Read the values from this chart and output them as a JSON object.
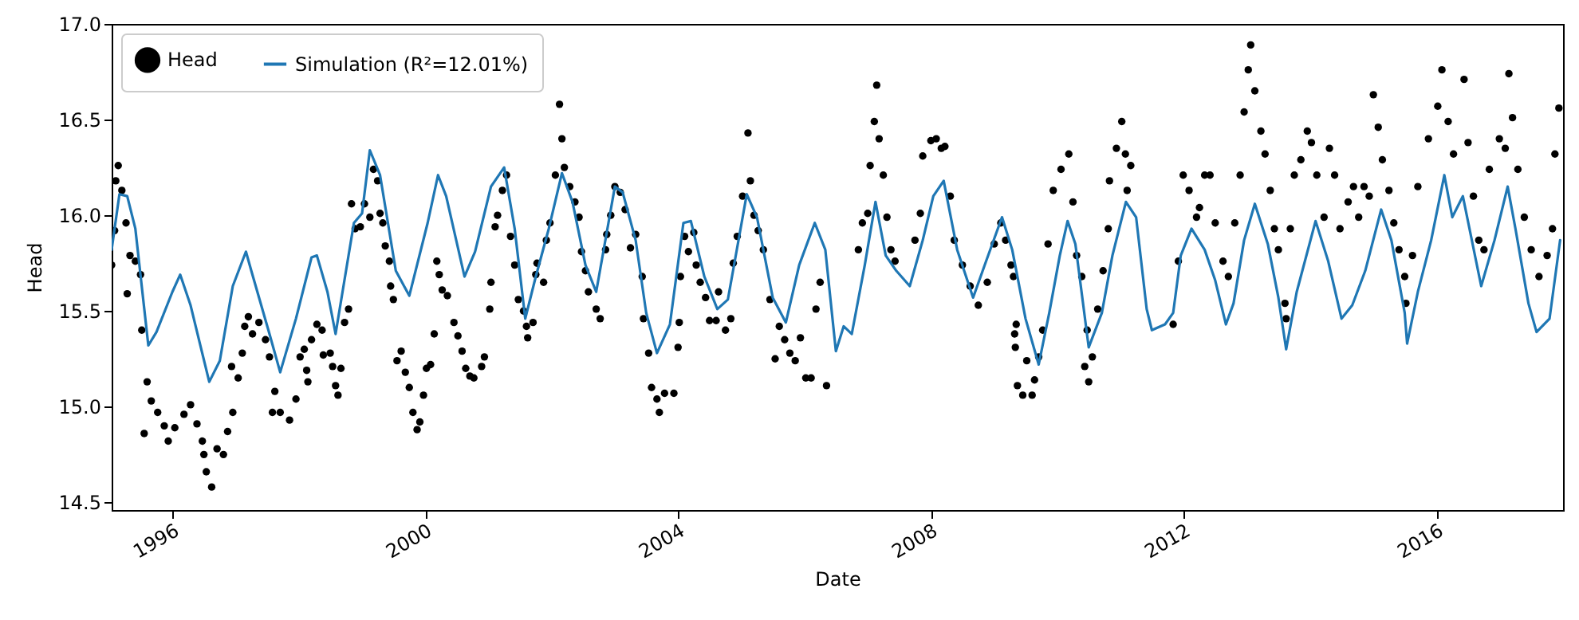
{
  "chart_data": {
    "type": "scatter",
    "xlabel": "Date",
    "ylabel": "Head",
    "legend": "top left",
    "grid": false,
    "xlim": [
      "1995-01-15",
      "2018-01-01"
    ],
    "xticks": [
      "1996",
      "2000",
      "2004",
      "2008",
      "2012",
      "2016"
    ],
    "ylim": [
      14.46,
      17.0
    ],
    "yticks": [
      {
        "value": 14.5,
        "label": "14.5"
      },
      {
        "value": 15,
        "label": "15.0"
      },
      {
        "value": 15.5,
        "label": "15.5"
      },
      {
        "value": 16,
        "label": "16.0"
      },
      {
        "value": 16.5,
        "label": "16.5"
      },
      {
        "value": 17,
        "label": "17.0"
      }
    ],
    "series": [
      {
        "name": "Head",
        "marker": "circle",
        "color": "#000000",
        "x": [
          "1995-01-15",
          "1995-02-01",
          "1995-02-08",
          "1995-02-22",
          "1995-03-15",
          "1995-04-08",
          "1995-04-15",
          "1995-05-01",
          "1995-06-01",
          "1995-07-01",
          "1995-07-08",
          "1995-07-22",
          "1995-08-08",
          "1995-09-01",
          "1995-10-08",
          "1995-11-15",
          "1995-12-08",
          "1996-01-15",
          "1996-03-08",
          "1996-04-15",
          "1996-05-22",
          "1996-06-22",
          "1996-07-01",
          "1996-07-15",
          "1996-08-15",
          "1996-09-15",
          "1996-10-22",
          "1996-11-15",
          "1996-12-08",
          "1996-12-15",
          "1997-01-15",
          "1997-02-08",
          "1997-02-22",
          "1997-03-15",
          "1997-04-08",
          "1997-05-15",
          "1997-06-22",
          "1997-07-15",
          "1997-08-01",
          "1997-08-15",
          "1997-09-15",
          "1997-11-08",
          "1997-12-15",
          "1998-01-08",
          "1998-02-01",
          "1998-02-15",
          "1998-02-22",
          "1998-03-15",
          "1998-04-15",
          "1998-05-15",
          "1998-05-22",
          "1998-07-01",
          "1998-07-15",
          "1998-08-01",
          "1998-08-15",
          "1998-09-01",
          "1998-09-22",
          "1998-10-15",
          "1998-11-01",
          "1998-11-22",
          "1998-12-22",
          "1999-01-15",
          "1999-02-15",
          "1999-03-08",
          "1999-04-01",
          "1999-04-15",
          "1999-05-01",
          "1999-05-15",
          "1999-06-08",
          "1999-06-15",
          "1999-07-01",
          "1999-07-22",
          "1999-08-15",
          "1999-09-08",
          "1999-10-01",
          "1999-10-22",
          "1999-11-15",
          "1999-12-01",
          "1999-12-22",
          "2000-01-08",
          "2000-02-01",
          "2000-02-22",
          "2000-03-08",
          "2000-03-22",
          "2000-04-08",
          "2000-05-08",
          "2000-06-15",
          "2000-07-08",
          "2000-08-01",
          "2000-08-22",
          "2000-09-15",
          "2000-10-08",
          "2000-11-22",
          "2000-12-08",
          "2001-01-08",
          "2001-01-15",
          "2001-02-08",
          "2001-02-22",
          "2001-03-22",
          "2001-04-15",
          "2001-05-08",
          "2001-06-01",
          "2001-06-22",
          "2001-07-22",
          "2001-08-08",
          "2001-08-15",
          "2001-09-15",
          "2001-10-01",
          "2001-10-08",
          "2001-11-15",
          "2001-12-01",
          "2001-12-22",
          "2002-01-22",
          "2002-02-15",
          "2002-03-01",
          "2002-03-15",
          "2002-04-15",
          "2002-05-15",
          "2002-06-08",
          "2002-06-22",
          "2002-07-15",
          "2002-08-01",
          "2002-09-15",
          "2002-10-08",
          "2002-11-08",
          "2002-11-15",
          "2002-12-08",
          "2003-01-01",
          "2003-02-01",
          "2003-03-01",
          "2003-04-01",
          "2003-05-01",
          "2003-06-08",
          "2003-06-15",
          "2003-07-15",
          "2003-08-01",
          "2003-09-01",
          "2003-09-15",
          "2003-10-15",
          "2003-12-08",
          "2004-01-01",
          "2004-01-08",
          "2004-01-15",
          "2004-02-08",
          "2004-03-01",
          "2004-04-01",
          "2004-04-15",
          "2004-05-08",
          "2004-06-08",
          "2004-07-01",
          "2004-08-08",
          "2004-08-22",
          "2004-10-01",
          "2004-11-01",
          "2004-11-15",
          "2004-12-08",
          "2005-01-08",
          "2005-02-08",
          "2005-02-22",
          "2005-03-15",
          "2005-04-08",
          "2005-05-08",
          "2005-06-15",
          "2005-07-15",
          "2005-08-08",
          "2005-09-08",
          "2005-10-08",
          "2005-11-08",
          "2005-12-08",
          "2006-01-08",
          "2006-02-08",
          "2006-03-08",
          "2006-04-01",
          "2006-05-08",
          "2006-11-08",
          "2006-12-01",
          "2007-01-01",
          "2007-01-15",
          "2007-02-08",
          "2007-02-22",
          "2007-03-08",
          "2007-04-01",
          "2007-04-22",
          "2007-05-15",
          "2007-06-08",
          "2007-10-01",
          "2007-11-01",
          "2007-11-15",
          "2008-01-01",
          "2008-02-01",
          "2008-03-01",
          "2008-03-22",
          "2008-04-22",
          "2008-05-15",
          "2008-07-01",
          "2008-08-15",
          "2008-10-01",
          "2008-11-22",
          "2009-01-01",
          "2009-02-08",
          "2009-03-08",
          "2009-04-08",
          "2009-04-22",
          "2009-04-29",
          "2009-05-03",
          "2009-05-08",
          "2009-05-15",
          "2009-06-15",
          "2009-07-08",
          "2009-08-08",
          "2009-08-22",
          "2009-09-15",
          "2009-10-08",
          "2009-11-08",
          "2009-12-08",
          "2010-01-22",
          "2010-03-08",
          "2010-04-01",
          "2010-04-22",
          "2010-05-22",
          "2010-06-08",
          "2010-06-22",
          "2010-07-01",
          "2010-07-22",
          "2010-08-22",
          "2010-09-22",
          "2010-10-22",
          "2010-10-29",
          "2010-12-08",
          "2011-01-08",
          "2011-01-29",
          "2011-02-08",
          "2011-03-01",
          "2011-11-01",
          "2011-12-01",
          "2011-12-29",
          "2012-02-01",
          "2012-03-15",
          "2012-04-01",
          "2012-05-01",
          "2012-06-01",
          "2012-07-01",
          "2012-08-15",
          "2012-09-15",
          "2012-10-22",
          "2012-11-22",
          "2012-12-15",
          "2013-01-08",
          "2013-01-22",
          "2013-02-15",
          "2013-03-22",
          "2013-04-15",
          "2013-05-15",
          "2013-06-08",
          "2013-07-01",
          "2013-08-08",
          "2013-08-15",
          "2013-09-08",
          "2013-10-01",
          "2013-11-08",
          "2013-12-15",
          "2014-01-08",
          "2014-02-08",
          "2014-03-22",
          "2014-04-22",
          "2014-05-22",
          "2014-06-22",
          "2014-08-08",
          "2014-09-08",
          "2014-10-08",
          "2014-11-08",
          "2014-12-08",
          "2015-01-01",
          "2015-01-29",
          "2015-02-22",
          "2015-04-01",
          "2015-04-29",
          "2015-05-29",
          "2015-07-01",
          "2015-07-08",
          "2015-08-15",
          "2015-09-15",
          "2015-11-15",
          "2016-01-08",
          "2016-02-01",
          "2016-03-08",
          "2016-04-08",
          "2016-06-08",
          "2016-07-01",
          "2016-08-01",
          "2016-09-01",
          "2016-10-01",
          "2016-11-01",
          "2016-12-29",
          "2017-02-01",
          "2017-02-22",
          "2017-03-15",
          "2017-04-15",
          "2017-05-22",
          "2017-07-01",
          "2017-08-15",
          "2017-10-01",
          "2017-11-01",
          "2017-11-15",
          "2017-12-08"
        ],
        "values": [
          15.74,
          15.92,
          16.18,
          16.26,
          16.13,
          15.96,
          15.59,
          15.79,
          15.76,
          15.69,
          15.4,
          14.86,
          15.13,
          15.03,
          14.97,
          14.9,
          14.82,
          14.89,
          14.96,
          15.01,
          14.91,
          14.82,
          14.75,
          14.66,
          14.58,
          14.78,
          14.75,
          14.87,
          15.21,
          14.97,
          15.15,
          15.28,
          15.42,
          15.47,
          15.38,
          15.44,
          15.35,
          15.26,
          14.97,
          15.08,
          14.97,
          14.93,
          15.04,
          15.26,
          15.3,
          15.19,
          15.13,
          15.35,
          15.43,
          15.4,
          15.27,
          15.28,
          15.21,
          15.11,
          15.06,
          15.2,
          15.44,
          15.51,
          16.06,
          15.93,
          15.94,
          16.06,
          15.99,
          16.24,
          16.18,
          16.01,
          15.96,
          15.84,
          15.76,
          15.63,
          15.56,
          15.24,
          15.29,
          15.18,
          15.1,
          14.97,
          14.88,
          14.92,
          15.06,
          15.2,
          15.22,
          15.38,
          15.76,
          15.69,
          15.61,
          15.58,
          15.44,
          15.37,
          15.29,
          15.2,
          15.16,
          15.15,
          15.21,
          15.26,
          15.51,
          15.65,
          15.94,
          16.0,
          16.13,
          16.21,
          15.89,
          15.74,
          15.56,
          15.5,
          15.42,
          15.36,
          15.44,
          15.69,
          15.75,
          15.65,
          15.87,
          15.96,
          16.21,
          16.58,
          16.4,
          16.25,
          16.15,
          16.07,
          15.99,
          15.81,
          15.71,
          15.6,
          15.51,
          15.46,
          15.82,
          15.9,
          16.0,
          16.15,
          16.12,
          16.03,
          15.83,
          15.9,
          15.68,
          15.46,
          15.28,
          15.1,
          15.04,
          14.97,
          15.07,
          15.07,
          15.31,
          15.44,
          15.68,
          15.89,
          15.81,
          15.91,
          15.74,
          15.65,
          15.57,
          15.45,
          15.45,
          15.6,
          15.4,
          15.46,
          15.75,
          15.89,
          16.1,
          16.43,
          16.18,
          16.0,
          15.92,
          15.82,
          15.56,
          15.25,
          15.42,
          15.35,
          15.28,
          15.24,
          15.36,
          15.15,
          15.15,
          15.51,
          15.65,
          15.11,
          15.82,
          15.96,
          16.01,
          16.26,
          16.49,
          16.68,
          16.4,
          16.21,
          15.99,
          15.82,
          15.76,
          15.87,
          16.01,
          16.31,
          16.39,
          16.4,
          16.35,
          16.36,
          16.1,
          15.87,
          15.74,
          15.63,
          15.53,
          15.65,
          15.85,
          15.96,
          15.87,
          15.74,
          15.68,
          15.38,
          15.31,
          15.43,
          15.11,
          15.06,
          15.24,
          15.06,
          15.14,
          15.26,
          15.4,
          15.85,
          16.13,
          16.24,
          16.32,
          16.07,
          15.79,
          15.68,
          15.21,
          15.4,
          15.13,
          15.26,
          15.51,
          15.71,
          15.93,
          16.18,
          16.35,
          16.49,
          16.32,
          16.13,
          16.26,
          15.43,
          15.76,
          16.21,
          16.13,
          15.99,
          16.04,
          16.21,
          16.21,
          15.96,
          15.76,
          15.68,
          15.96,
          16.21,
          16.54,
          16.76,
          16.89,
          16.65,
          16.44,
          16.32,
          16.13,
          15.93,
          15.82,
          15.54,
          15.46,
          15.93,
          16.21,
          16.29,
          16.44,
          16.38,
          16.21,
          15.99,
          16.35,
          16.21,
          15.93,
          16.07,
          16.15,
          15.99,
          16.15,
          16.1,
          16.63,
          16.46,
          16.29,
          16.13,
          15.96,
          15.82,
          15.68,
          15.54,
          15.79,
          16.15,
          16.4,
          16.57,
          16.76,
          16.49,
          16.32,
          16.71,
          16.38,
          16.1,
          15.87,
          15.82,
          16.24,
          16.4,
          16.35,
          16.74,
          16.51,
          16.24,
          15.99,
          15.82,
          15.68,
          15.79,
          15.93,
          16.32,
          16.56
        ]
      },
      {
        "name": "Simulation (R²=12.01%)",
        "type": "line",
        "color": "#1f77b4",
        "x": [
          "1995-01-15",
          "1995-03-01",
          "1995-04-15",
          "1995-06-01",
          "1995-08-15",
          "1995-10-01",
          "1996-01-01",
          "1996-02-15",
          "1996-04-15",
          "1996-08-01",
          "1996-10-01",
          "1996-12-15",
          "1997-03-01",
          "1997-04-01",
          "1997-07-15",
          "1997-09-15",
          "1997-12-15",
          "1998-03-15",
          "1998-04-15",
          "1998-06-15",
          "1998-08-01",
          "1998-11-15",
          "1999-01-01",
          "1999-02-15",
          "1999-04-15",
          "1999-07-15",
          "1999-10-01",
          "2000-01-15",
          "2000-03-15",
          "2000-05-01",
          "2000-08-15",
          "2000-10-15",
          "2001-01-15",
          "2001-04-01",
          "2001-06-01",
          "2001-08-01",
          "2001-10-01",
          "2001-12-15",
          "2002-03-01",
          "2002-05-01",
          "2002-07-15",
          "2002-09-15",
          "2003-01-01",
          "2003-02-15",
          "2003-05-01",
          "2003-07-01",
          "2003-09-01",
          "2003-11-15",
          "2004-02-01",
          "2004-03-15",
          "2004-06-01",
          "2004-08-15",
          "2004-10-15",
          "2005-02-01",
          "2005-04-01",
          "2005-07-01",
          "2005-09-15",
          "2005-12-01",
          "2006-03-01",
          "2006-05-01",
          "2006-07-01",
          "2006-08-15",
          "2006-10-01",
          "2006-12-15",
          "2007-02-15",
          "2007-04-15",
          "2007-06-15",
          "2007-09-01",
          "2007-11-15",
          "2008-01-15",
          "2008-03-15",
          "2008-06-01",
          "2008-09-01",
          "2008-11-15",
          "2009-02-15",
          "2009-04-15",
          "2009-07-01",
          "2009-09-15",
          "2009-11-15",
          "2010-01-15",
          "2010-03-01",
          "2010-04-15",
          "2010-07-01",
          "2010-09-15",
          "2010-11-15",
          "2011-02-01",
          "2011-04-01",
          "2011-06-01",
          "2011-07-01",
          "2011-09-15",
          "2011-11-01",
          "2011-12-15",
          "2012-02-15",
          "2012-05-01",
          "2012-07-01",
          "2012-09-01",
          "2012-10-15",
          "2012-12-15",
          "2013-02-15",
          "2013-05-01",
          "2013-07-01",
          "2013-08-15",
          "2013-10-15",
          "2014-02-01",
          "2014-04-15",
          "2014-07-01",
          "2014-09-01",
          "2014-11-15",
          "2015-02-15",
          "2015-04-15",
          "2015-07-01",
          "2015-07-15",
          "2015-09-15",
          "2015-12-01",
          "2016-02-15",
          "2016-04-01",
          "2016-06-01",
          "2016-09-15",
          "2016-12-01",
          "2017-02-15",
          "2017-04-01",
          "2017-06-15",
          "2017-08-01",
          "2017-10-15",
          "2017-12-15"
        ],
        "values": [
          15.82,
          16.11,
          16.1,
          15.93,
          15.32,
          15.39,
          15.6,
          15.69,
          15.53,
          15.13,
          15.24,
          15.63,
          15.81,
          15.71,
          15.38,
          15.18,
          15.46,
          15.78,
          15.79,
          15.6,
          15.38,
          15.96,
          16.01,
          16.34,
          16.21,
          15.71,
          15.58,
          15.96,
          16.21,
          16.1,
          15.68,
          15.81,
          16.15,
          16.25,
          15.93,
          15.46,
          15.68,
          15.93,
          16.22,
          16.07,
          15.74,
          15.6,
          16.15,
          16.12,
          15.87,
          15.49,
          15.28,
          15.43,
          15.96,
          15.97,
          15.68,
          15.51,
          15.56,
          16.11,
          15.99,
          15.57,
          15.44,
          15.74,
          15.96,
          15.82,
          15.29,
          15.42,
          15.38,
          15.74,
          16.07,
          15.79,
          15.71,
          15.63,
          15.87,
          16.1,
          16.18,
          15.82,
          15.57,
          15.76,
          15.99,
          15.82,
          15.46,
          15.22,
          15.49,
          15.79,
          15.97,
          15.85,
          15.31,
          15.49,
          15.79,
          16.07,
          15.99,
          15.51,
          15.4,
          15.43,
          15.49,
          15.79,
          15.93,
          15.82,
          15.66,
          15.43,
          15.54,
          15.87,
          16.06,
          15.85,
          15.57,
          15.3,
          15.6,
          15.97,
          15.76,
          15.46,
          15.53,
          15.71,
          16.03,
          15.87,
          15.49,
          15.33,
          15.6,
          15.87,
          16.21,
          15.99,
          16.1,
          15.63,
          15.87,
          16.15,
          15.93,
          15.54,
          15.39,
          15.46,
          15.87
        ]
      }
    ]
  }
}
